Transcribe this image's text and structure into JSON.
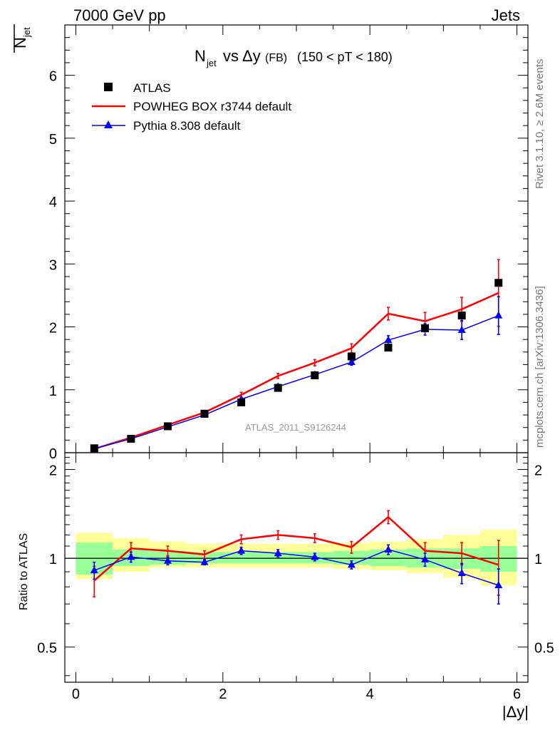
{
  "header": {
    "left": "7000 GeV pp",
    "right": "Jets"
  },
  "title": {
    "main": "N",
    "main_sub": "jet",
    "vs": " vs ",
    "delta": "Δy",
    "fb": "(FB)",
    "range": "(150 < pT < 180)"
  },
  "ylabel": {
    "main": "N",
    "sub": "jet"
  },
  "ratio_ylabel": "Ratio to ATLAS",
  "xlabel": "|Δy|",
  "side_text": {
    "rivet": "Rivet 3.1.10, ≥ 2.6M events",
    "mcplots": "mcplots.cern.ch [arXiv:1306.3436]"
  },
  "watermark": "ATLAS_2011_S9126244",
  "legend": [
    {
      "label": "ATLAS",
      "color": "#000000",
      "marker": "square"
    },
    {
      "label": "POWHEG BOX r3744 default",
      "color": "#ff0000",
      "marker": "line"
    },
    {
      "label": "Pythia 8.308 default",
      "color": "#0000ff",
      "marker": "triangle"
    }
  ],
  "chart_data": {
    "type": "line",
    "x": [
      0.25,
      0.75,
      1.25,
      1.75,
      2.25,
      2.75,
      3.25,
      3.75,
      4.25,
      4.75,
      5.25,
      5.75
    ],
    "bin_edges": [
      0,
      0.5,
      1,
      1.5,
      2,
      2.5,
      3,
      3.5,
      4,
      4.5,
      5,
      5.5,
      6
    ],
    "main_panel": {
      "xlim": [
        -0.15,
        6.15
      ],
      "ylim": [
        0,
        6.8
      ],
      "yticks": [
        0,
        1,
        2,
        3,
        4,
        5,
        6
      ],
      "series": [
        {
          "name": "ATLAS",
          "color": "#000000",
          "values": [
            0.07,
            0.22,
            0.42,
            0.62,
            0.8,
            1.03,
            1.23,
            1.53,
            1.67,
            1.98,
            2.18,
            2.7
          ],
          "errors": [
            0.01,
            0.02,
            0.03,
            0.04,
            0.05,
            0.06,
            0.07,
            0.09,
            0.11,
            0.13,
            0.16,
            0.2
          ]
        },
        {
          "name": "POWHEG BOX r3744 default",
          "color": "#ff0000",
          "values": [
            0.06,
            0.24,
            0.44,
            0.64,
            0.92,
            1.22,
            1.43,
            1.66,
            2.21,
            2.09,
            2.28,
            2.54
          ],
          "errors": [
            0.01,
            0.02,
            0.02,
            0.03,
            0.04,
            0.04,
            0.05,
            0.07,
            0.1,
            0.14,
            0.19,
            0.53
          ]
        },
        {
          "name": "Pythia 8.308 default",
          "color": "#0000ff",
          "values": [
            0.065,
            0.22,
            0.41,
            0.6,
            0.85,
            1.05,
            1.24,
            1.44,
            1.79,
            1.96,
            1.95,
            2.18
          ],
          "errors": [
            0.01,
            0.02,
            0.02,
            0.03,
            0.03,
            0.04,
            0.04,
            0.05,
            0.07,
            0.09,
            0.15,
            0.3
          ]
        }
      ]
    },
    "ratio_panel": {
      "ylim": [
        0.38,
        2.28
      ],
      "ytick_labels": [
        "0.5",
        "1",
        "2"
      ],
      "yticks": [
        0.5,
        1,
        2
      ],
      "reference": 1,
      "band_inner": [
        [
          0.88,
          1.13
        ],
        [
          0.94,
          1.07
        ],
        [
          0.95,
          1.06
        ],
        [
          0.96,
          1.05
        ],
        [
          0.96,
          1.05
        ],
        [
          0.96,
          1.05
        ],
        [
          0.96,
          1.05
        ],
        [
          0.95,
          1.06
        ],
        [
          0.94,
          1.07
        ],
        [
          0.93,
          1.08
        ],
        [
          0.92,
          1.08
        ],
        [
          0.9,
          1.1
        ]
      ],
      "band_outer": [
        [
          0.85,
          1.22
        ],
        [
          0.9,
          1.17
        ],
        [
          0.93,
          1.14
        ],
        [
          0.93,
          1.12
        ],
        [
          0.93,
          1.12
        ],
        [
          0.93,
          1.12
        ],
        [
          0.93,
          1.12
        ],
        [
          0.92,
          1.13
        ],
        [
          0.91,
          1.14
        ],
        [
          0.89,
          1.16
        ],
        [
          0.86,
          1.2
        ],
        [
          0.81,
          1.25
        ]
      ],
      "series": [
        {
          "name": "POWHEG BOX r3744 default",
          "color": "#ff0000",
          "values": [
            0.84,
            1.08,
            1.06,
            1.03,
            1.16,
            1.2,
            1.17,
            1.09,
            1.38,
            1.06,
            1.04,
            0.95
          ],
          "errors": [
            0.1,
            0.05,
            0.04,
            0.03,
            0.04,
            0.04,
            0.04,
            0.05,
            0.07,
            0.07,
            0.09,
            0.2
          ]
        },
        {
          "name": "Pythia 8.308 default",
          "color": "#0000ff",
          "values": [
            0.91,
            1.01,
            0.98,
            0.97,
            1.06,
            1.04,
            1.01,
            0.95,
            1.07,
            0.99,
            0.89,
            0.81
          ],
          "errors": [
            0.06,
            0.04,
            0.03,
            0.02,
            0.03,
            0.03,
            0.03,
            0.03,
            0.04,
            0.05,
            0.07,
            0.11
          ]
        }
      ]
    },
    "xticks": [
      0,
      2,
      4,
      6
    ],
    "xlabel": "|Δy|"
  }
}
